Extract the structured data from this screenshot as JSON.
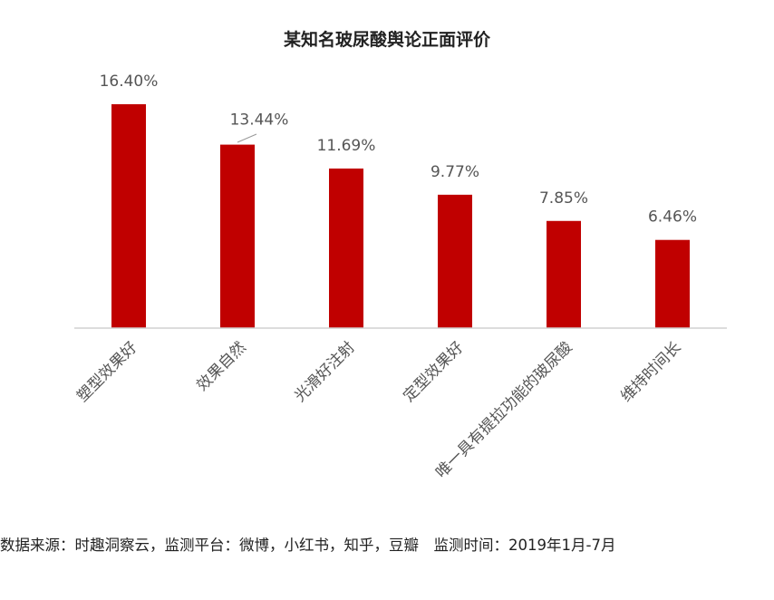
{
  "chart_data": {
    "type": "bar",
    "title": "某知名玻尿酸舆论正面评价",
    "categories": [
      "塑型效果好",
      "效果自然",
      "光滑好注射",
      "定型效果好",
      "唯一具有提拉功能的玻尿酸",
      "维持时间长"
    ],
    "values": [
      16.4,
      13.44,
      11.69,
      9.77,
      7.85,
      6.46
    ],
    "data_labels": [
      "16.40%",
      "13.44%",
      "11.69%",
      "9.77%",
      "7.85%",
      "6.46%"
    ],
    "bar_color": "#C00000",
    "ylim": [
      0,
      18
    ],
    "grid": false,
    "legend": "none"
  },
  "footer": "数据来源：时趣洞察云，监测平台：微博，小红书，知乎，豆瓣　监测时间：2019年1月-7月"
}
